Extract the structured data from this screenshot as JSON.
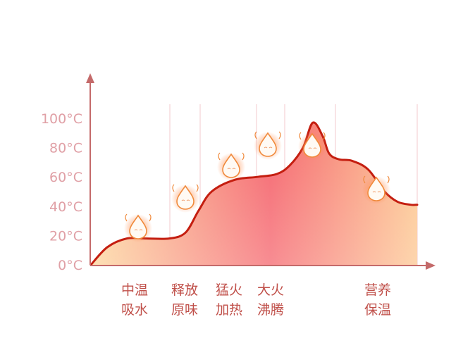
{
  "chart_data": {
    "type": "area",
    "title": "",
    "xlabel": "",
    "ylabel": "",
    "ylim": [
      0,
      110
    ],
    "y_ticks": [
      "0°C",
      "20°C",
      "40°C",
      "60°C",
      "80°C",
      "100°C"
    ],
    "y_tick_values": [
      0,
      20,
      40,
      60,
      80,
      100
    ],
    "stages": [
      {
        "line1": "中温",
        "line2": "吸水"
      },
      {
        "line1": "释放",
        "line2": "原味"
      },
      {
        "line1": "猛火",
        "line2": "加热"
      },
      {
        "line1": "大火",
        "line2": "沸腾"
      },
      {
        "line1": "营养",
        "line2": "保温"
      }
    ],
    "series": [
      {
        "values": [
          [
            0,
            0
          ],
          [
            5,
            12
          ],
          [
            11,
            18
          ],
          [
            17,
            18
          ],
          [
            24,
            18
          ],
          [
            29,
            22
          ],
          [
            33,
            37
          ],
          [
            37,
            50
          ],
          [
            44,
            58
          ],
          [
            51,
            60
          ],
          [
            57,
            62
          ],
          [
            61,
            68
          ],
          [
            65,
            80
          ],
          [
            68,
            97
          ],
          [
            71,
            88
          ],
          [
            73,
            76
          ],
          [
            76,
            72
          ],
          [
            80,
            71
          ],
          [
            85,
            65
          ],
          [
            90,
            50
          ],
          [
            94,
            43
          ],
          [
            98,
            41
          ],
          [
            100,
            41
          ]
        ]
      }
    ],
    "colors": {
      "line": "#c41e10",
      "fill_start": "#fdd79c",
      "fill_mid": "#f5666e",
      "fill_end": "#fdc892",
      "axis": "#c46a6a",
      "tick_text": "#e0a0a6",
      "stage_text": "#c0504a"
    },
    "decorations": [
      "water-drop-icon",
      "water-drop-icon",
      "water-drop-icon",
      "water-drop-icon",
      "water-drop-icon",
      "water-drop-icon"
    ]
  }
}
